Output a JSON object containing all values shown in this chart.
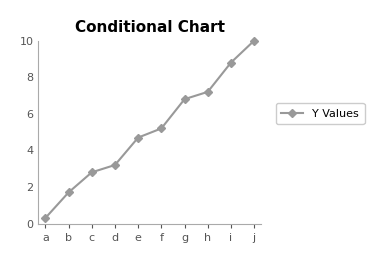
{
  "title": "Conditional Chart",
  "categories": [
    "a",
    "b",
    "c",
    "d",
    "e",
    "f",
    "g",
    "h",
    "i",
    "j"
  ],
  "y_values": [
    0.3,
    1.7,
    2.8,
    3.2,
    4.7,
    5.2,
    6.8,
    7.2,
    8.8,
    10.0
  ],
  "line_color": "#999999",
  "marker_style": "D",
  "marker_size": 4,
  "line_width": 1.5,
  "legend_label": "Y Values",
  "ylim": [
    0,
    10
  ],
  "yticks": [
    0,
    2,
    4,
    6,
    8,
    10
  ],
  "title_fontsize": 11,
  "tick_fontsize": 8,
  "background_color": "#ffffff",
  "spine_color": "#aaaaaa",
  "tick_color": "#555555"
}
